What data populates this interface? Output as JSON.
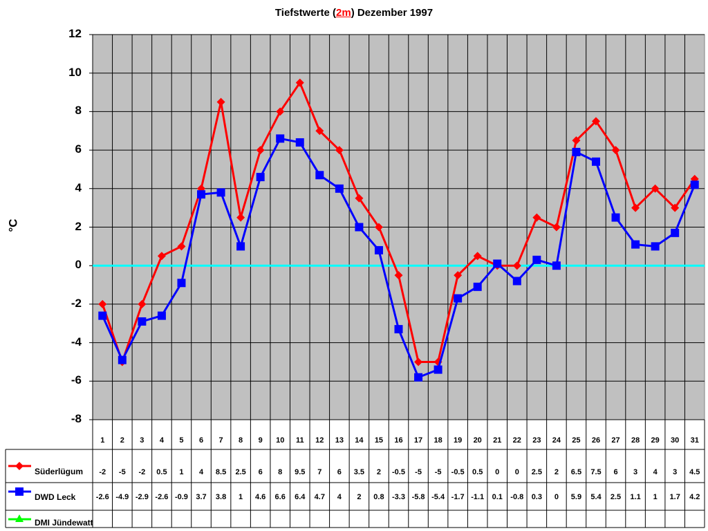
{
  "title": {
    "prefix": "Tiefstwerte (",
    "highlight": "2m",
    "suffix": ") Dezember 1997"
  },
  "ylabel": "°C",
  "colors": {
    "plot_bg": "#c0c0c0",
    "zero_line": "#00ffff",
    "suederluegum": "#ff0000",
    "dwd_leck": "#0000ff",
    "dmi_juendewatt": "#00ff00"
  },
  "chart_data": {
    "type": "line",
    "title": "Tiefstwerte (2m) Dezember 1997",
    "xlabel": "",
    "ylabel": "°C",
    "ylim": [
      -8,
      12
    ],
    "yticks": [
      12,
      10,
      8,
      6,
      4,
      2,
      0,
      -2,
      -4,
      -6,
      -8
    ],
    "grid": true,
    "legend_position": "data-table-left",
    "categories": [
      "1",
      "2",
      "3",
      "4",
      "5",
      "6",
      "7",
      "8",
      "9",
      "10",
      "11",
      "12",
      "13",
      "14",
      "15",
      "16",
      "17",
      "18",
      "19",
      "20",
      "21",
      "22",
      "23",
      "24",
      "25",
      "26",
      "27",
      "28",
      "29",
      "30",
      "31"
    ],
    "series": [
      {
        "name": "Süderlügum",
        "marker": "diamond",
        "color": "#ff0000",
        "values": [
          -2,
          -5,
          -2,
          0.5,
          1,
          4,
          8.5,
          2.5,
          6,
          8,
          9.5,
          7,
          6,
          3.5,
          2,
          -0.5,
          -5,
          -5,
          -0.5,
          0.5,
          0,
          0,
          2.5,
          2,
          6.5,
          7.5,
          6,
          3,
          4,
          3,
          4.5
        ]
      },
      {
        "name": "DWD Leck",
        "marker": "square",
        "color": "#0000ff",
        "values": [
          -2.6,
          -4.9,
          -2.9,
          -2.6,
          -0.9,
          3.7,
          3.8,
          1,
          4.6,
          6.6,
          6.4,
          4.7,
          4,
          2,
          0.8,
          -3.3,
          -5.8,
          -5.4,
          -1.7,
          -1.1,
          0.1,
          -0.8,
          0.3,
          0,
          5.9,
          5.4,
          2.5,
          1.1,
          1,
          1.7,
          4.2
        ]
      },
      {
        "name": "DMI Jündewatt",
        "marker": "triangle",
        "color": "#00ff00",
        "values": [
          null,
          null,
          null,
          null,
          null,
          null,
          null,
          null,
          null,
          null,
          null,
          null,
          null,
          null,
          null,
          null,
          null,
          null,
          null,
          null,
          null,
          null,
          null,
          null,
          null,
          null,
          null,
          null,
          null,
          null,
          null
        ]
      }
    ],
    "reference_line": {
      "y": 0,
      "color": "#00ffff"
    }
  },
  "table": {
    "row_labels": [
      "Süderlügum",
      "DWD Leck",
      "DMI Jündewatt"
    ],
    "rows": [
      [
        "-2",
        "-5",
        "-2",
        "0.5",
        "1",
        "4",
        "8.5",
        "2.5",
        "6",
        "8",
        "9.5",
        "7",
        "6",
        "3.5",
        "2",
        "-0.5",
        "-5",
        "-5",
        "-0.5",
        "0.5",
        "0",
        "0",
        "2.5",
        "2",
        "6.5",
        "7.5",
        "6",
        "3",
        "4",
        "3",
        "4.5"
      ],
      [
        "-2.6",
        "-4.9",
        "-2.9",
        "-2.6",
        "-0.9",
        "3.7",
        "3.8",
        "1",
        "4.6",
        "6.6",
        "6.4",
        "4.7",
        "4",
        "2",
        "0.8",
        "-3.3",
        "-5.8",
        "-5.4",
        "-1.7",
        "-1.1",
        "0.1",
        "-0.8",
        "0.3",
        "0",
        "5.9",
        "5.4",
        "2.5",
        "1.1",
        "1",
        "1.7",
        "4.2"
      ],
      [
        "",
        "",
        "",
        "",
        "",
        "",
        "",
        "",
        "",
        "",
        "",
        "",
        "",
        "",
        "",
        "",
        "",
        "",
        "",
        "",
        "",
        "",
        "",
        "",
        "",
        "",
        "",
        "",
        "",
        "",
        ""
      ]
    ]
  }
}
